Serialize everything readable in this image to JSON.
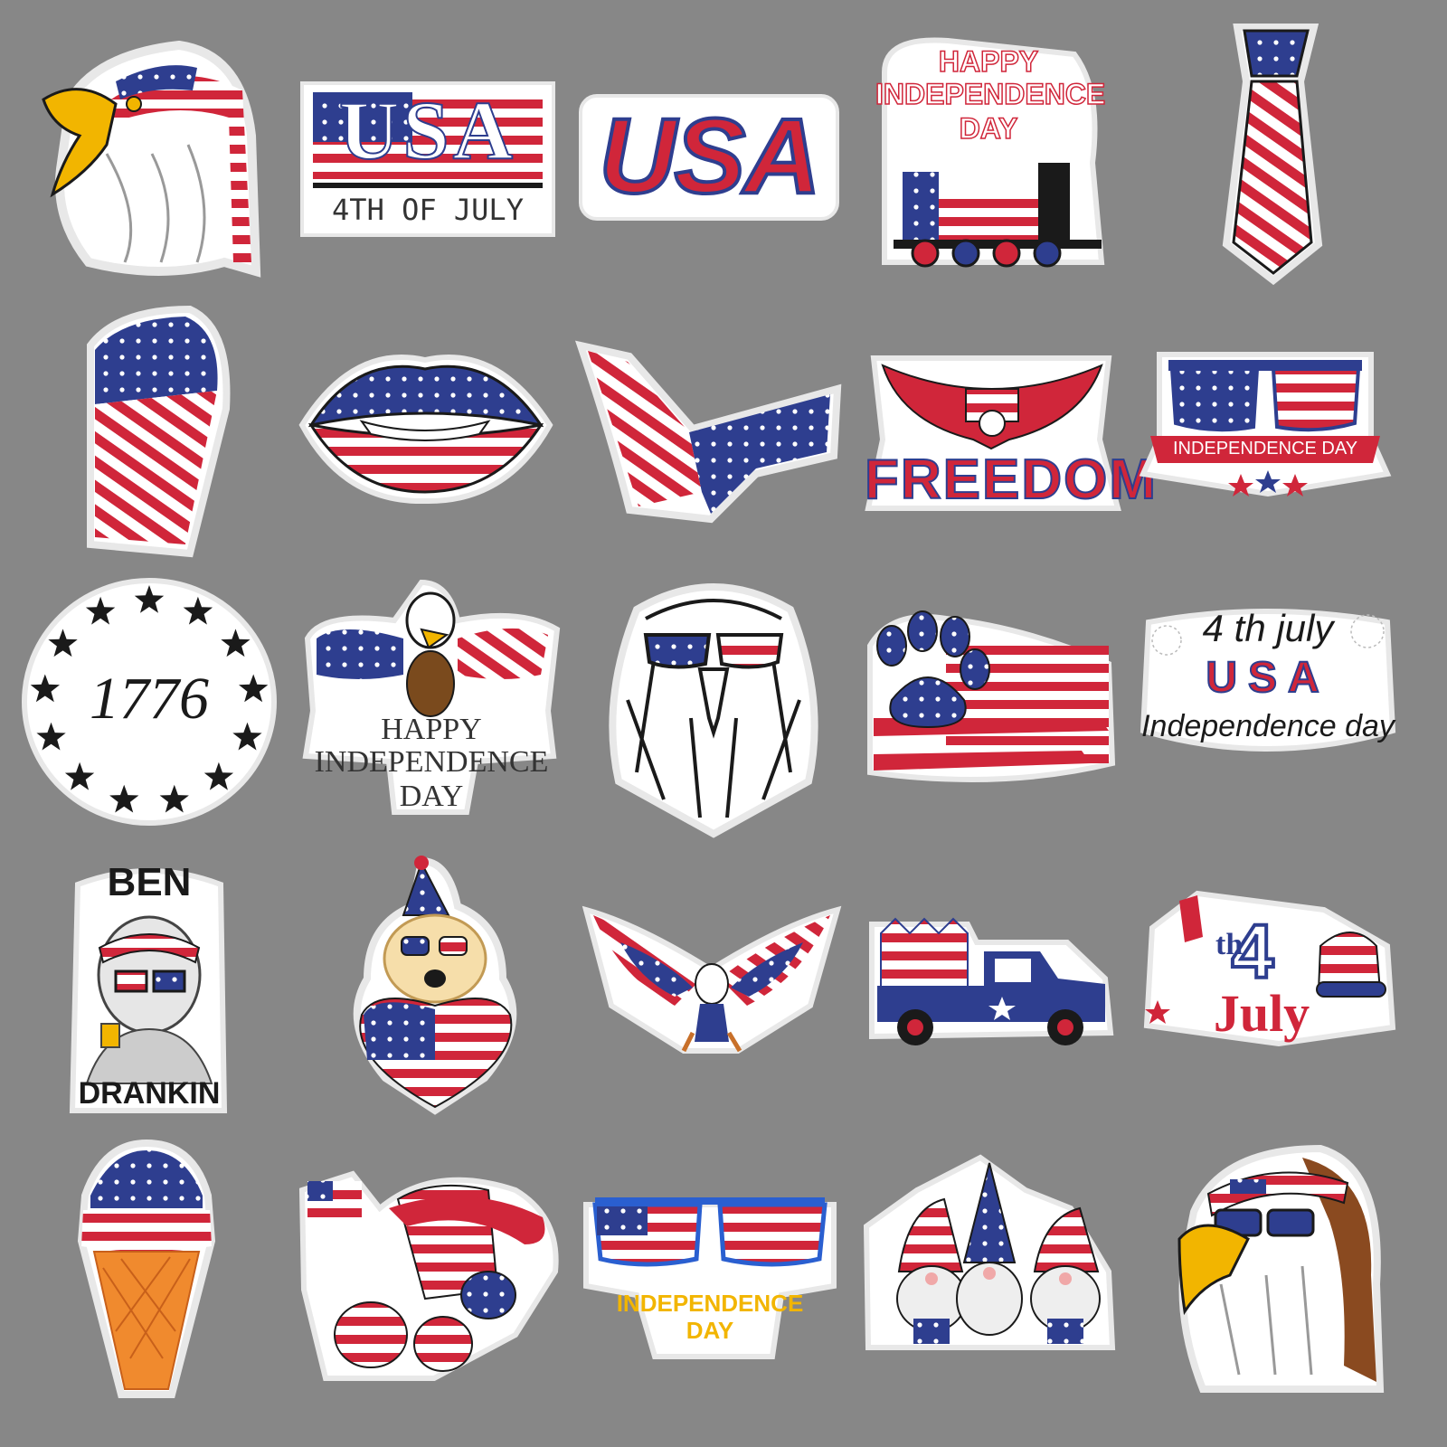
{
  "colors": {
    "background": "#878787",
    "red": "#d0263a",
    "blue": "#2e3e8f",
    "white": "#ffffff",
    "gold": "#f2b500",
    "black": "#1a1a1a",
    "gray_outline": "#e8e8e8"
  },
  "stickers": [
    {
      "name": "eagle-headband",
      "texts": []
    },
    {
      "name": "usa-4th-of-july",
      "texts": [
        "USA",
        "4TH OF JULY"
      ]
    },
    {
      "name": "usa-statue",
      "texts": [
        "USA"
      ]
    },
    {
      "name": "happy-independence-train",
      "texts": [
        "HAPPY",
        "INDEPENDENCE",
        "DAY"
      ]
    },
    {
      "name": "flag-tie",
      "texts": []
    },
    {
      "name": "flag-fist",
      "texts": []
    },
    {
      "name": "flag-lips",
      "texts": []
    },
    {
      "name": "flag-eagle-silhouette",
      "texts": []
    },
    {
      "name": "freedom-eagle",
      "texts": [
        "FREEDOM"
      ]
    },
    {
      "name": "independence-glasses-banner",
      "texts": [
        "INDEPENDENCE DAY"
      ]
    },
    {
      "name": "1776-stars",
      "texts": [
        "1776"
      ]
    },
    {
      "name": "cartoon-eagle",
      "texts": [
        "HAPPY",
        "INDEPENDENCE",
        "DAY"
      ]
    },
    {
      "name": "eagle-sunglasses",
      "texts": []
    },
    {
      "name": "paw-flag",
      "texts": []
    },
    {
      "name": "4th-july-usa",
      "texts": [
        "4 th july",
        "USA",
        "Independence day"
      ]
    },
    {
      "name": "ben-drankin",
      "texts": [
        "BEN",
        "DRANKIN"
      ]
    },
    {
      "name": "dog-heart",
      "texts": []
    },
    {
      "name": "spread-eagle",
      "texts": []
    },
    {
      "name": "blue-truck",
      "texts": []
    },
    {
      "name": "4th-july-hat",
      "texts": [
        "4",
        "th",
        "July"
      ]
    },
    {
      "name": "ice-cream",
      "texts": []
    },
    {
      "name": "hat-shoes",
      "texts": []
    },
    {
      "name": "independence-glasses",
      "texts": [
        "INDEPENDENCE",
        "DAY"
      ]
    },
    {
      "name": "gnomes",
      "texts": []
    },
    {
      "name": "mullet-eagle",
      "texts": []
    }
  ]
}
